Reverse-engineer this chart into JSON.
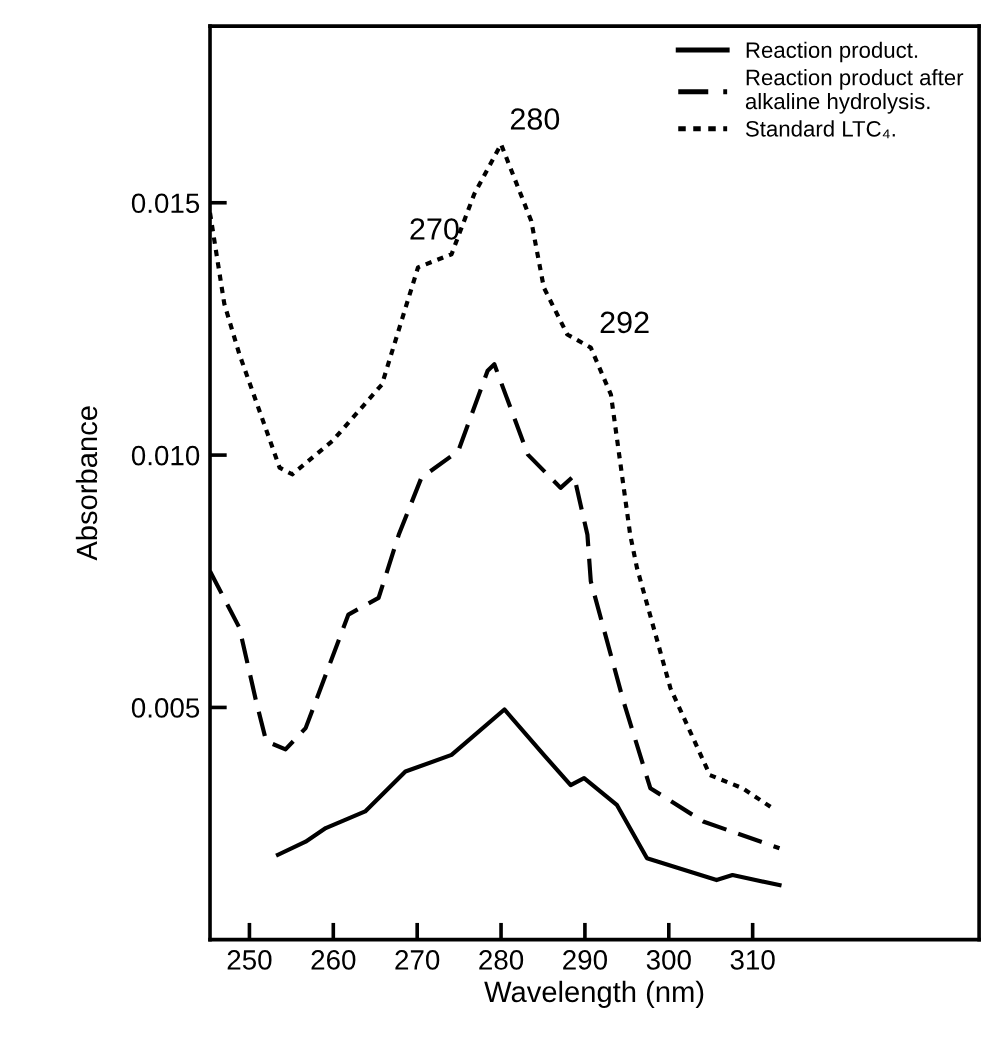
{
  "chart_data": {
    "type": "line",
    "xlabel": "Wavelength (nm)",
    "ylabel": "Absorbance",
    "xlim": [
      245.3,
      337
    ],
    "ylim": [
      0.0004,
      0.0185
    ],
    "xticks": [
      250,
      260,
      270,
      280,
      290,
      300,
      310
    ],
    "yticks": [
      0.005,
      {
        "value": 0.01,
        "label": "0.010"
      },
      0.015
    ],
    "grid": false,
    "legend": "top right",
    "marker": "none",
    "series": [
      {
        "name": "Reaction product.",
        "color": "#000000",
        "line_style": "solid",
        "x": [
          253.4,
          256.7,
          259.1,
          263.8,
          268.6,
          274.1,
          280.4,
          285.1,
          288.3,
          289.9,
          293.8,
          297.4,
          305.7,
          307.6,
          313.2
        ],
        "values": [
          0.00208,
          0.00234,
          0.00261,
          0.00294,
          0.00373,
          0.00406,
          0.00496,
          0.00406,
          0.00346,
          0.0036,
          0.00307,
          0.00201,
          0.00158,
          0.00168,
          0.00148
        ]
      },
      {
        "name": "Reaction product after\nalkaline hydrolysis.",
        "color": "#000000",
        "line_style": "dashed",
        "x": [
          245.3,
          248.8,
          250.8,
          252,
          254.3,
          256.7,
          261.8,
          265.4,
          267.8,
          270.5,
          274.9,
          278.4,
          279.2,
          283.2,
          287.1,
          288.7,
          290.3,
          290.7,
          294.6,
          297.8,
          304.1,
          313.2
        ],
        "values": [
          0.0077,
          0.00658,
          0.00512,
          0.00433,
          0.00417,
          0.00459,
          0.00684,
          0.00717,
          0.00842,
          0.00955,
          0.01008,
          0.01167,
          0.0118,
          0.01001,
          0.00935,
          0.00959,
          0.00842,
          0.0075,
          0.00512,
          0.0034,
          0.00274,
          0.00221
        ]
      },
      {
        "name": "Standard LTC₄.",
        "color": "#000000",
        "line_style": "dotted",
        "x": [
          245.3,
          247,
          248.8,
          253.6,
          255.1,
          259.9,
          265.8,
          270.1,
          274.1,
          276.8,
          280,
          283.6,
          285.1,
          287.9,
          290.7,
          293.1,
          295.4,
          296.2,
          300.2,
          304.9,
          308.8,
          312.4
        ],
        "values": [
          0.0148,
          0.013,
          0.012,
          0.00975,
          0.00962,
          0.01028,
          0.0114,
          0.01372,
          0.01398,
          0.01517,
          0.01616,
          0.01464,
          0.01332,
          0.01239,
          0.01213,
          0.0112,
          0.00842,
          0.00777,
          0.00538,
          0.00366,
          0.0034,
          0.003
        ]
      }
    ],
    "annotations": [
      {
        "text": "280",
        "x": 280,
        "y": 0.01616
      },
      {
        "text": "270",
        "x": 274.1,
        "y": 0.01398
      },
      {
        "text": "292",
        "x": 290.7,
        "y": 0.01213
      }
    ]
  }
}
